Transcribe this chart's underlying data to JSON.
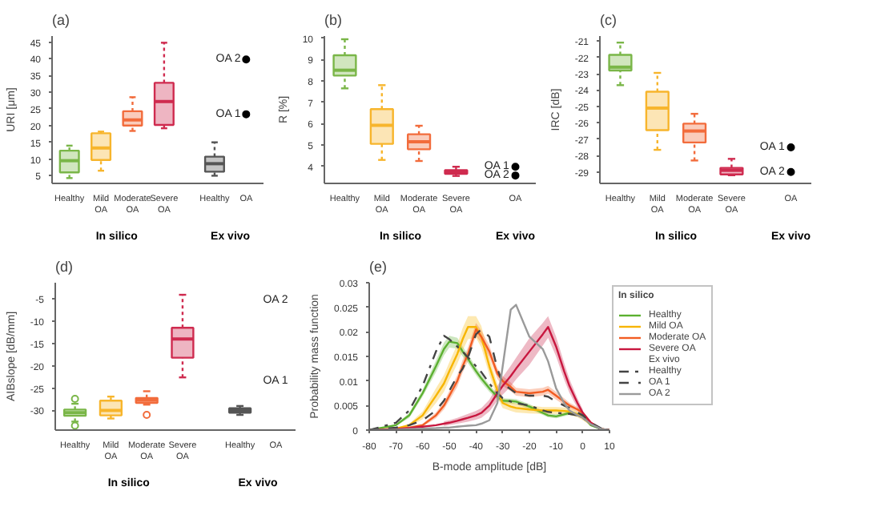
{
  "chart_data": [
    {
      "type": "box",
      "title": "(a)",
      "ylabel": "URI [μm]",
      "categories": [
        "Healthy",
        "Mild\nOA",
        "Moderate\nOA",
        "Severe\nOA",
        "Healthy",
        "OA"
      ],
      "colors": [
        "#7ab648",
        "#f7b52c",
        "#f26c3c",
        "#cf2b4f",
        "#555555",
        "#555555"
      ],
      "boxes": [
        {
          "low": 4.3,
          "q1": 6,
          "median": 9.5,
          "q3": 12.5,
          "high": 14
        },
        {
          "low": 6.5,
          "q1": 9.7,
          "median": 13.3,
          "q3": 17.7,
          "high": 18.2
        },
        {
          "low": 18.4,
          "q1": 20,
          "median": 21.7,
          "q3": 24.3,
          "high": 28.5
        },
        {
          "low": 19.2,
          "q1": 20.2,
          "median": 27.2,
          "q3": 32.8,
          "high": 44.8
        },
        {
          "low": 5,
          "q1": 6.2,
          "median": 8.6,
          "q3": 10.7,
          "high": 15
        },
        null
      ],
      "series": [
        {
          "type": "scatter",
          "name": "OA 1",
          "x": [
            "OA"
          ],
          "values": [
            23.4
          ],
          "color": "#000000"
        },
        {
          "type": "scatter",
          "name": "OA 2",
          "x": [
            "OA"
          ],
          "values": [
            39.8
          ],
          "color": "#000000"
        }
      ],
      "marker": "circle",
      "annotations": [
        "In silico",
        "Ex vivo"
      ],
      "ylim": [
        2.7,
        46.8
      ],
      "yticks": [
        5,
        10,
        15,
        20,
        25,
        30,
        35,
        40,
        45
      ]
    },
    {
      "type": "box",
      "title": "(b)",
      "ylabel": "R [%]",
      "categories": [
        "Healthy",
        "Mild\nOA",
        "Moderate\nOA",
        "Severe\nOA",
        "OA"
      ],
      "colors": [
        "#7ab648",
        "#f7b52c",
        "#f26c3c",
        "#cf2b4f",
        "#555555"
      ],
      "boxes": [
        {
          "low": 7.65,
          "q1": 8.25,
          "median": 8.5,
          "q3": 9.2,
          "high": 9.95
        },
        {
          "low": 4.3,
          "q1": 5.05,
          "median": 5.92,
          "q3": 6.68,
          "high": 7.8
        },
        {
          "low": 4.25,
          "q1": 4.8,
          "median": 5.15,
          "q3": 5.5,
          "high": 5.9
        },
        {
          "low": 3.55,
          "q1": 3.65,
          "median": 3.73,
          "q3": 3.82,
          "high": 3.98
        },
        null
      ],
      "series": [
        {
          "type": "scatter",
          "name": "OA 1",
          "x": [
            "OA"
          ],
          "values": [
            3.98
          ],
          "color": "#000000"
        },
        {
          "type": "scatter",
          "name": "OA 2",
          "x": [
            "OA"
          ],
          "values": [
            3.57
          ],
          "color": "#000000"
        }
      ],
      "marker": "circle",
      "annotations": [
        "In silico",
        "Ex vivo"
      ],
      "ylim": [
        3.2,
        10.1
      ],
      "yticks": [
        4,
        5,
        6,
        7,
        8,
        9,
        10
      ]
    },
    {
      "type": "box",
      "title": "(c)",
      "ylabel": "IRC [dB]",
      "categories": [
        "Healthy",
        "Mild\nOA",
        "Moderate\nOA",
        "Severe\nOA",
        "OA"
      ],
      "colors": [
        "#7ab648",
        "#f7b52c",
        "#f26c3c",
        "#cf2b4f",
        "#555555"
      ],
      "boxes": [
        {
          "low": -23.7,
          "q1": -22.8,
          "median": -22.6,
          "q3": -21.85,
          "high": -21.1
        },
        {
          "low": -27.65,
          "q1": -26.45,
          "median": -25.1,
          "q3": -24.1,
          "high": -22.95
        },
        {
          "low": -28.3,
          "q1": -27.2,
          "median": -26.5,
          "q3": -26.05,
          "high": -25.45
        },
        {
          "low": -29.2,
          "q1": -29.15,
          "median": -28.9,
          "q3": -28.75,
          "high": -28.2
        },
        null
      ],
      "series": [
        {
          "type": "scatter",
          "name": "OA 1",
          "x": [
            "OA"
          ],
          "values": [
            -27.5
          ],
          "color": "#000000"
        },
        {
          "type": "scatter",
          "name": "OA 2",
          "x": [
            "OA"
          ],
          "values": [
            -29
          ],
          "color": "#000000"
        }
      ],
      "marker": "circle",
      "annotations": [
        "In silico",
        "Ex vivo"
      ],
      "ylim": [
        -29.7,
        -20.7
      ],
      "yticks": [
        -29,
        -28,
        -27,
        -26,
        -25,
        -24,
        -23,
        -22,
        -21
      ]
    },
    {
      "type": "box",
      "title": "(d)",
      "ylabel": "AIBslope [dB/mm]",
      "categories": [
        "Healthy",
        "Mild\nOA",
        "Moderate\nOA",
        "Severe\nOA",
        "Healthy",
        "OA"
      ],
      "colors": [
        "#7ab648",
        "#f7b52c",
        "#f26c3c",
        "#cf2b4f",
        "#555555",
        "#555555"
      ],
      "boxes": [
        {
          "low": -32.5,
          "q1": -31.2,
          "median": -30.5,
          "q3": -29.8,
          "high": -28.5,
          "outliers": [
            -27.4,
            -33.4
          ]
        },
        {
          "low": -31.8,
          "q1": -31.1,
          "median": -30,
          "q3": -27.8,
          "high": -26.9
        },
        {
          "low": -28.7,
          "q1": -28.3,
          "median": -27.7,
          "q3": -27.2,
          "high": -25.7,
          "outliers": [
            -31
          ]
        },
        {
          "low": -22.6,
          "q1": -18.2,
          "median": -14,
          "q3": -11.5,
          "high": -4.1
        },
        {
          "low": -31,
          "q1": -30.5,
          "median": -30,
          "q3": -29.5,
          "high": -29
        },
        null
      ],
      "annotations": [
        "In silico",
        "Ex vivo",
        "OA 2",
        "OA 1"
      ],
      "ylim": [
        -34.4,
        -1.4
      ],
      "yticks": [
        -30,
        -25,
        -20,
        -15,
        -10,
        -5
      ]
    },
    {
      "type": "line",
      "title": "(e)",
      "xlabel": "B-mode amplitude [dB]",
      "ylabel": "Probability mass function",
      "legend_title": "In silico",
      "annotations": [
        "Ex vivo"
      ],
      "legend": "right",
      "x": [
        -80,
        -70,
        -65,
        -60,
        -55,
        -52,
        -50,
        -47,
        -45,
        -43,
        -40,
        -38,
        -35,
        -32,
        -30,
        -27,
        -25,
        -20,
        -15,
        -13,
        -10,
        -7,
        -5,
        -2,
        0,
        3,
        7,
        10
      ],
      "series": [
        {
          "name": "Healthy",
          "color": "#5bb030",
          "values": [
            0,
            0.001,
            0.003,
            0.0075,
            0.013,
            0.0165,
            0.018,
            0.0177,
            0.016,
            0.0145,
            0.012,
            0.0105,
            0.0085,
            0.0068,
            0.006,
            0.0059,
            0.0058,
            0.0048,
            0.0035,
            0.003,
            0.0028,
            0.0032,
            0.0035,
            0.0032,
            0.0028,
            0.001,
            0.0002,
            0
          ],
          "lower": [
            0,
            0.0008,
            0.0025,
            0.0068,
            0.0118,
            0.0152,
            0.0168,
            0.0166,
            0.015,
            0.0136,
            0.0112,
            0.0097,
            0.0078,
            0.0062,
            0.0055,
            0.0054,
            0.0053,
            0.0043,
            0.0031,
            0.0026,
            0.0024,
            0.0028,
            0.0031,
            0.0028,
            0.0025,
            0.0008,
            0.0001,
            0
          ],
          "upper": [
            0,
            0.0012,
            0.0035,
            0.0082,
            0.0142,
            0.0178,
            0.0192,
            0.0188,
            0.017,
            0.0154,
            0.0128,
            0.0113,
            0.0092,
            0.0074,
            0.0065,
            0.0064,
            0.0063,
            0.0053,
            0.0039,
            0.0034,
            0.0032,
            0.0036,
            0.0039,
            0.0036,
            0.0031,
            0.0012,
            0.0003,
            0
          ]
        },
        {
          "name": "Mild OA",
          "color": "#f7b500",
          "values": [
            0,
            0.0003,
            0.001,
            0.003,
            0.007,
            0.0095,
            0.012,
            0.0155,
            0.0185,
            0.021,
            0.021,
            0.019,
            0.013,
            0.008,
            0.0055,
            0.0048,
            0.0045,
            0.0042,
            0.004,
            0.004,
            0.004,
            0.0039,
            0.0038,
            0.0032,
            0.0025,
            0.0012,
            null,
            null
          ],
          "lower": [
            0,
            0.0002,
            0.0007,
            0.0022,
            0.0055,
            0.0078,
            0.0102,
            0.0135,
            0.0162,
            0.0185,
            0.0188,
            0.0168,
            0.0112,
            0.0066,
            0.0045,
            0.0039,
            0.0036,
            0.0034,
            0.0033,
            0.0033,
            0.0033,
            0.0032,
            0.0031,
            0.0026,
            0.002,
            0.0009,
            0.0001,
            0
          ],
          "upper": [
            0,
            0.0004,
            0.0013,
            0.0038,
            0.0085,
            0.0112,
            0.0138,
            0.0175,
            0.0208,
            0.0232,
            0.0232,
            0.0212,
            0.0148,
            0.0094,
            0.0065,
            0.0057,
            0.0054,
            0.005,
            0.0047,
            0.0047,
            0.0047,
            0.0046,
            0.0045,
            0.0038,
            0.003,
            0.0015,
            0.0003,
            0
          ]
        },
        {
          "name": "Moderate OA",
          "color": "#f25c22",
          "values": [
            0,
            0.0002,
            0.0005,
            0.001,
            0.003,
            0.005,
            0.007,
            0.01,
            0.013,
            0.0155,
            0.0205,
            0.019,
            0.016,
            0.0115,
            0.01,
            0.0088,
            0.0078,
            0.0075,
            0.0078,
            0.0082,
            0.007,
            0.0058,
            0.005,
            0.0042,
            0.0035,
            0.0015,
            0.0002,
            0
          ],
          "lower": [
            0,
            0.0001,
            0.0003,
            0.0007,
            0.0024,
            0.0042,
            0.006,
            0.0088,
            0.0117,
            0.0141,
            0.0192,
            0.0177,
            0.0148,
            0.0104,
            0.009,
            0.0079,
            0.007,
            0.0067,
            0.007,
            0.0074,
            0.0062,
            0.0051,
            0.0044,
            0.0037,
            0.0031,
            0.0012,
            0.0001,
            0
          ],
          "upper": [
            0,
            0.0003,
            0.0007,
            0.0013,
            0.0036,
            0.0058,
            0.008,
            0.0112,
            0.0143,
            0.0169,
            0.0218,
            0.0203,
            0.0172,
            0.0126,
            0.011,
            0.0097,
            0.0086,
            0.0083,
            0.0086,
            0.009,
            0.0078,
            0.0065,
            0.0056,
            0.0047,
            0.0039,
            0.0018,
            0.0003,
            0
          ]
        },
        {
          "name": "Severe OA",
          "color": "#c8173f",
          "values": [
            0,
            0.0002,
            0.0004,
            0.0007,
            0.001,
            0.0013,
            0.0015,
            0.0019,
            0.0022,
            0.0025,
            0.003,
            0.0035,
            0.005,
            0.0075,
            0.009,
            0.011,
            0.0125,
            0.016,
            0.0195,
            0.021,
            0.017,
            0.012,
            0.009,
            0.0055,
            0.0035,
            0.0015,
            0.0002,
            0
          ],
          "lower": [
            null,
            null,
            null,
            null,
            null,
            0.0008,
            0.001,
            0.0013,
            0.0015,
            0.0017,
            0.0021,
            0.0025,
            0.0038,
            0.006,
            0.0072,
            0.0089,
            0.0103,
            0.0133,
            0.0172,
            0.0188,
            0.015,
            0.0103,
            0.0076,
            0.0045,
            0.0028,
            null,
            null,
            null
          ],
          "upper": [
            null,
            null,
            null,
            null,
            null,
            0.0018,
            0.002,
            0.0025,
            0.0029,
            0.0033,
            0.0039,
            0.0045,
            0.0062,
            0.009,
            0.0108,
            0.0131,
            0.0147,
            0.0187,
            0.0218,
            0.0232,
            0.019,
            0.0137,
            0.0104,
            0.0065,
            0.0042,
            null,
            null,
            null
          ]
        },
        {
          "name": "Healthy",
          "color": "#444444",
          "line_style": "dashdot",
          "values": [
            0,
            0.0015,
            0.004,
            0.009,
            0.016,
            0.0192,
            0.0185,
            0.017,
            0.016,
            0.0148,
            0.013,
            0.0118,
            0.0095,
            0.0075,
            0.0065,
            0.0058,
            0.0055,
            0.005,
            0.004,
            0.0037,
            0.0035,
            0.0034,
            0.0033,
            0.003,
            0.0025,
            0.0012,
            0.0002,
            0
          ]
        },
        {
          "name": "OA 1",
          "color": "#444444",
          "line_style": "dashed",
          "values": [
            0,
            0.0005,
            0.001,
            0.002,
            0.004,
            0.006,
            0.008,
            0.011,
            0.0125,
            0.0148,
            0.0195,
            0.0205,
            0.019,
            0.0125,
            0.0095,
            0.0083,
            0.0075,
            0.007,
            0.007,
            0.0068,
            0.0058,
            0.005,
            0.0045,
            0.0036,
            0.003,
            0.0015,
            0.0003,
            0
          ]
        },
        {
          "name": "OA 2",
          "color": "#9a9a9a",
          "values": [
            0,
            0.0001,
            0.0002,
            0.0003,
            0.0004,
            0.0005,
            0.0005,
            0.0007,
            0.0008,
            0.0009,
            0.001,
            0.0013,
            0.002,
            0.0055,
            0.013,
            0.0245,
            0.0255,
            0.019,
            0.0165,
            0.014,
            0.0085,
            0.0055,
            0.004,
            0.003,
            0.0025,
            0.0012,
            0.0002,
            0
          ]
        }
      ],
      "xlim": [
        -80,
        10
      ],
      "xticks": [
        -80,
        -70,
        -60,
        -50,
        -40,
        -30,
        -20,
        -10,
        0,
        10
      ],
      "ylim": [
        0,
        0.03
      ],
      "yticks": [
        0,
        0.005,
        0.01,
        0.015,
        0.02,
        0.025,
        0.03
      ]
    }
  ]
}
